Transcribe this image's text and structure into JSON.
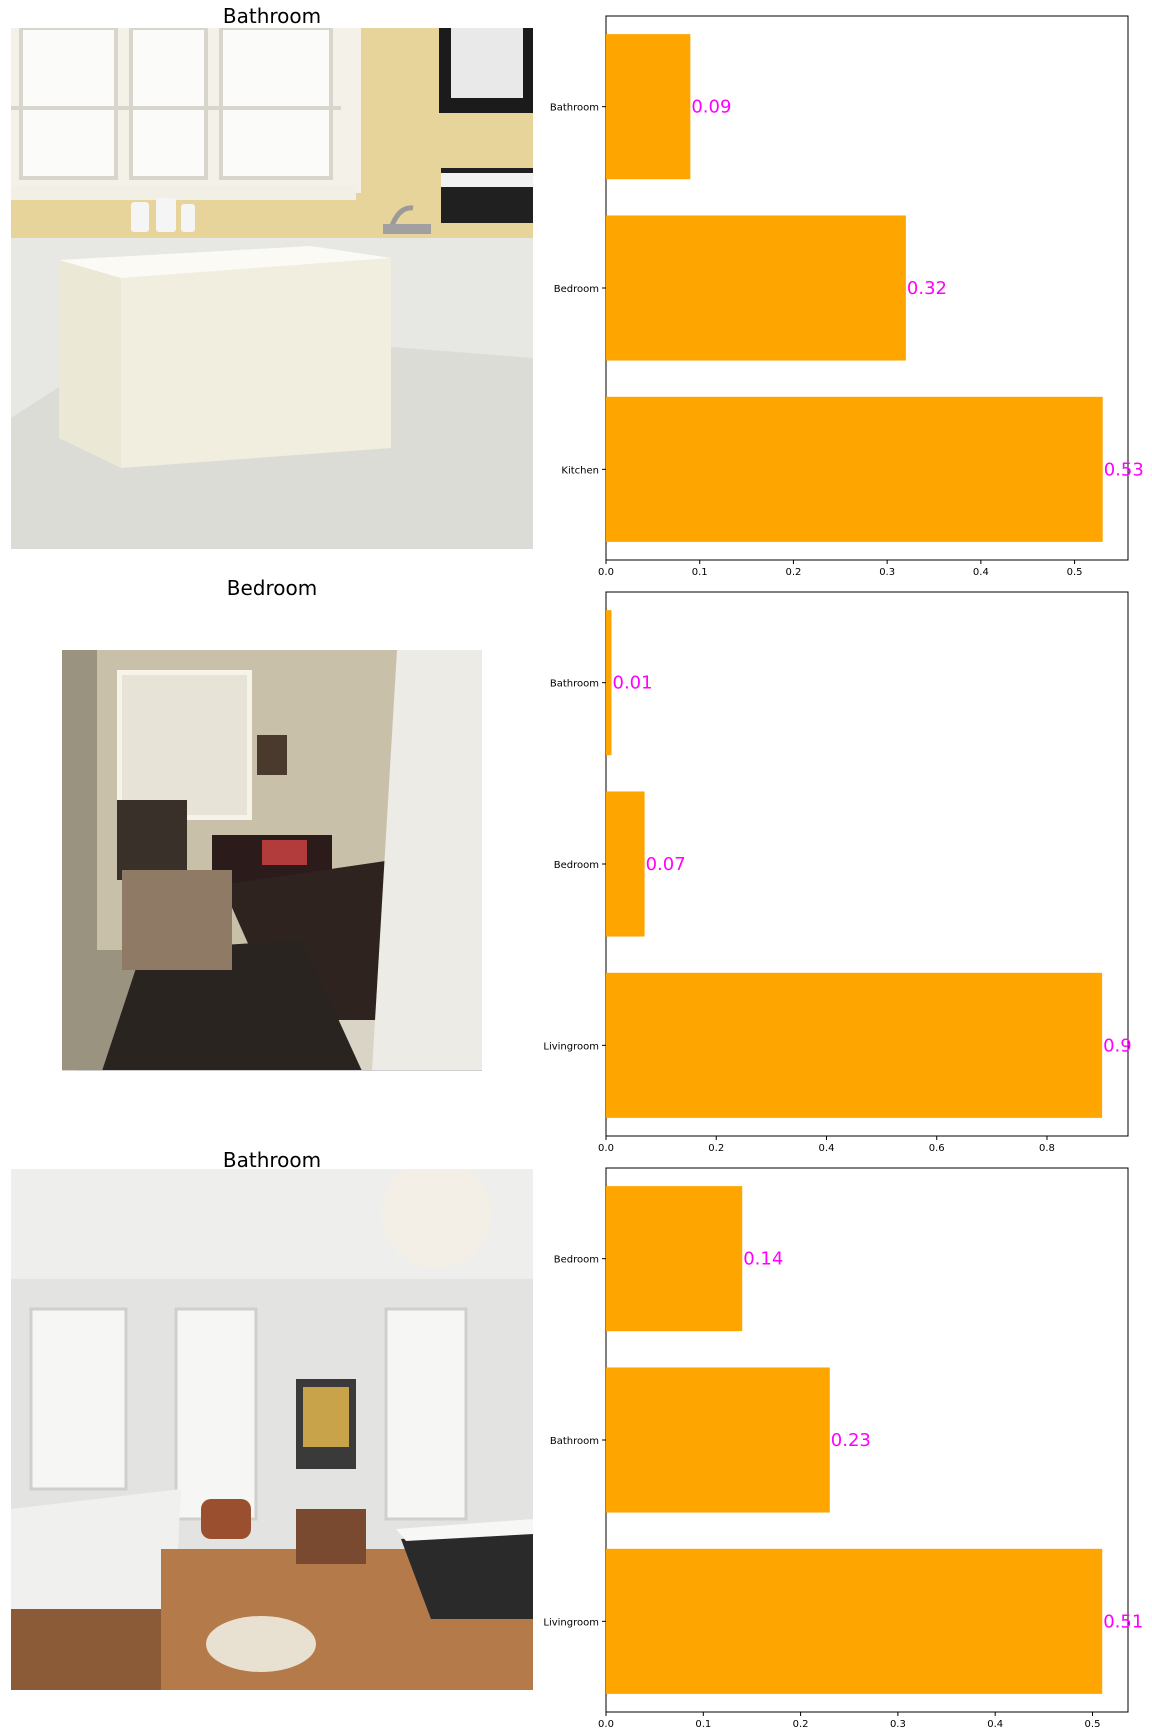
{
  "chart_data": [
    {
      "type": "bar",
      "orientation": "horizontal",
      "title": "Bathroom",
      "categories": [
        "Kitchen",
        "Bedroom",
        "Bathroom"
      ],
      "values": [
        0.53,
        0.32,
        0.09
      ],
      "value_labels": [
        "0.53",
        "0.32",
        "0.09"
      ],
      "xticks": [
        "0.0",
        "0.1",
        "0.2",
        "0.3",
        "0.4",
        "0.5"
      ],
      "xlim": [
        0,
        0.557
      ],
      "bar_color": "#ffa500",
      "label_color": "#ff00ff",
      "grid": false,
      "photo": {
        "name": "bathroom-photo",
        "scene": "bathtub"
      }
    },
    {
      "type": "bar",
      "orientation": "horizontal",
      "title": "Bedroom",
      "categories": [
        "Livingroom",
        "Bedroom",
        "Bathroom"
      ],
      "values": [
        0.9,
        0.07,
        0.01
      ],
      "value_labels": [
        "0.9",
        "0.07",
        "0.01"
      ],
      "xticks": [
        "0.0",
        "0.2",
        "0.4",
        "0.6",
        "0.8"
      ],
      "xlim": [
        0,
        0.947
      ],
      "bar_color": "#ffa500",
      "label_color": "#ff00ff",
      "grid": false,
      "photo": {
        "name": "bedroom-photo",
        "scene": "bedroom"
      }
    },
    {
      "type": "bar",
      "orientation": "horizontal",
      "title": "Bathroom",
      "categories": [
        "Livingroom",
        "Bathroom",
        "Bedroom"
      ],
      "values": [
        0.51,
        0.23,
        0.14
      ],
      "value_labels": [
        "0.51",
        "0.23",
        "0.14"
      ],
      "xticks": [
        "0.0",
        "0.1",
        "0.2",
        "0.3",
        "0.4",
        "0.5"
      ],
      "xlim": [
        0,
        0.5365
      ],
      "bar_color": "#ffa500",
      "label_color": "#ff00ff",
      "grid": false,
      "photo": {
        "name": "bathroom-photo",
        "scene": "livingroom"
      }
    }
  ]
}
